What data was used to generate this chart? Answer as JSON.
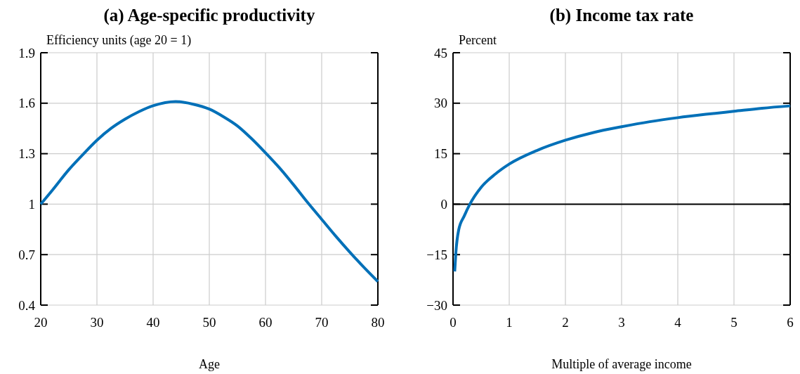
{
  "chart_data": [
    {
      "type": "line",
      "title": "(a) Age-specific productivity",
      "ylabel": "Efficiency units (age 20 = 1)",
      "xlabel": "Age",
      "x": [
        20,
        22,
        25,
        27.5,
        30,
        32.5,
        35,
        37.5,
        40,
        44,
        47,
        50,
        52.5,
        55,
        57.5,
        60,
        62.5,
        65,
        67.5,
        70,
        72.5,
        75,
        77.5,
        80
      ],
      "series": [
        {
          "color": "#0070b8",
          "values": [
            1.0,
            1.08,
            1.205,
            1.295,
            1.38,
            1.45,
            1.505,
            1.55,
            1.585,
            1.61,
            1.595,
            1.565,
            1.52,
            1.465,
            1.39,
            1.305,
            1.215,
            1.115,
            1.01,
            0.91,
            0.81,
            0.715,
            0.625,
            0.54
          ]
        }
      ],
      "xlim": [
        20,
        80
      ],
      "xticks": [
        20,
        30,
        40,
        50,
        60,
        70,
        80
      ],
      "ylim": [
        0.4,
        1.9
      ],
      "yticks": [
        0.4,
        0.7,
        1,
        1.3,
        1.6,
        1.9
      ],
      "grid": true,
      "line_style": "solid"
    },
    {
      "type": "line",
      "title": "(b) Income tax rate",
      "ylabel": "Percent",
      "xlabel": "Multiple of average income",
      "x": [
        0.03,
        0.05,
        0.1,
        0.2,
        0.3,
        0.5,
        0.75,
        1,
        1.5,
        2,
        2.5,
        3,
        3.5,
        4,
        4.5,
        5,
        5.5,
        6
      ],
      "series": [
        {
          "color": "#0070b8",
          "values": [
            -20,
            -14.5,
            -7.7,
            -3.5,
            0,
            5,
            8.9,
            11.9,
            16,
            19,
            21.3,
            23,
            24.5,
            25.7,
            26.7,
            27.6,
            28.5,
            29.2
          ]
        }
      ],
      "xlim": [
        0,
        6
      ],
      "xticks": [
        0,
        1,
        2,
        3,
        4,
        5,
        6
      ],
      "ylim": [
        -30,
        45
      ],
      "yticks": [
        {
          "value": -30,
          "label": "−30"
        },
        {
          "value": -15,
          "label": "−15"
        },
        0,
        15,
        30,
        45
      ],
      "grid": true,
      "line_style": "solid",
      "ref_lines": [
        {
          "axis": "y",
          "value": 0,
          "color": "#000000"
        }
      ]
    }
  ]
}
